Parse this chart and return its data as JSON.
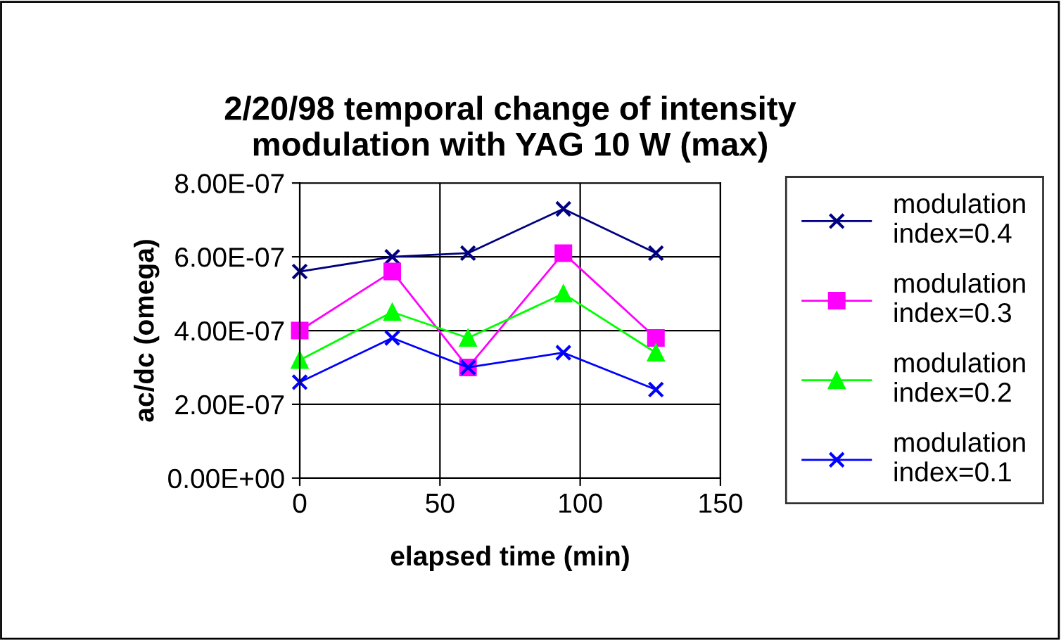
{
  "chart_data": {
    "type": "line",
    "title": "2/20/98 temporal change of intensity\nmodulation with YAG 10 W (max)",
    "xlabel": "elapsed time (min)",
    "ylabel": "ac/dc (omega)",
    "x": [
      0,
      33,
      60,
      94,
      127
    ],
    "series": [
      {
        "name": "modulation\nindex=0.4",
        "color": "#000080",
        "marker": "cross",
        "values": [
          5.6e-07,
          6e-07,
          6.1e-07,
          7.3e-07,
          6.1e-07
        ]
      },
      {
        "name": "modulation\nindex=0.3",
        "color": "#ff00ff",
        "marker": "square",
        "values": [
          4e-07,
          5.6e-07,
          3e-07,
          6.1e-07,
          3.8e-07
        ]
      },
      {
        "name": "modulation\nindex=0.2",
        "color": "#00ff00",
        "marker": "triangle",
        "values": [
          3.2e-07,
          4.5e-07,
          3.8e-07,
          5e-07,
          3.4e-07
        ]
      },
      {
        "name": "modulation\nindex=0.1",
        "color": "#0000ff",
        "marker": "cross",
        "values": [
          2.6e-07,
          3.8e-07,
          3e-07,
          3.4e-07,
          2.4e-07
        ]
      }
    ],
    "xlim": [
      0,
      150
    ],
    "xticks": [
      0,
      50,
      100,
      150
    ],
    "ylim": [
      0,
      8e-07
    ],
    "yticks": [
      {
        "value": 0,
        "label": "0.00E+00"
      },
      {
        "value": 2e-07,
        "label": "2.00E-07"
      },
      {
        "value": 4e-07,
        "label": "4.00E-07"
      },
      {
        "value": 6e-07,
        "label": "6.00E-07"
      },
      {
        "value": 8e-07,
        "label": "8.00E-07"
      }
    ],
    "grid": true,
    "legend": "right"
  }
}
